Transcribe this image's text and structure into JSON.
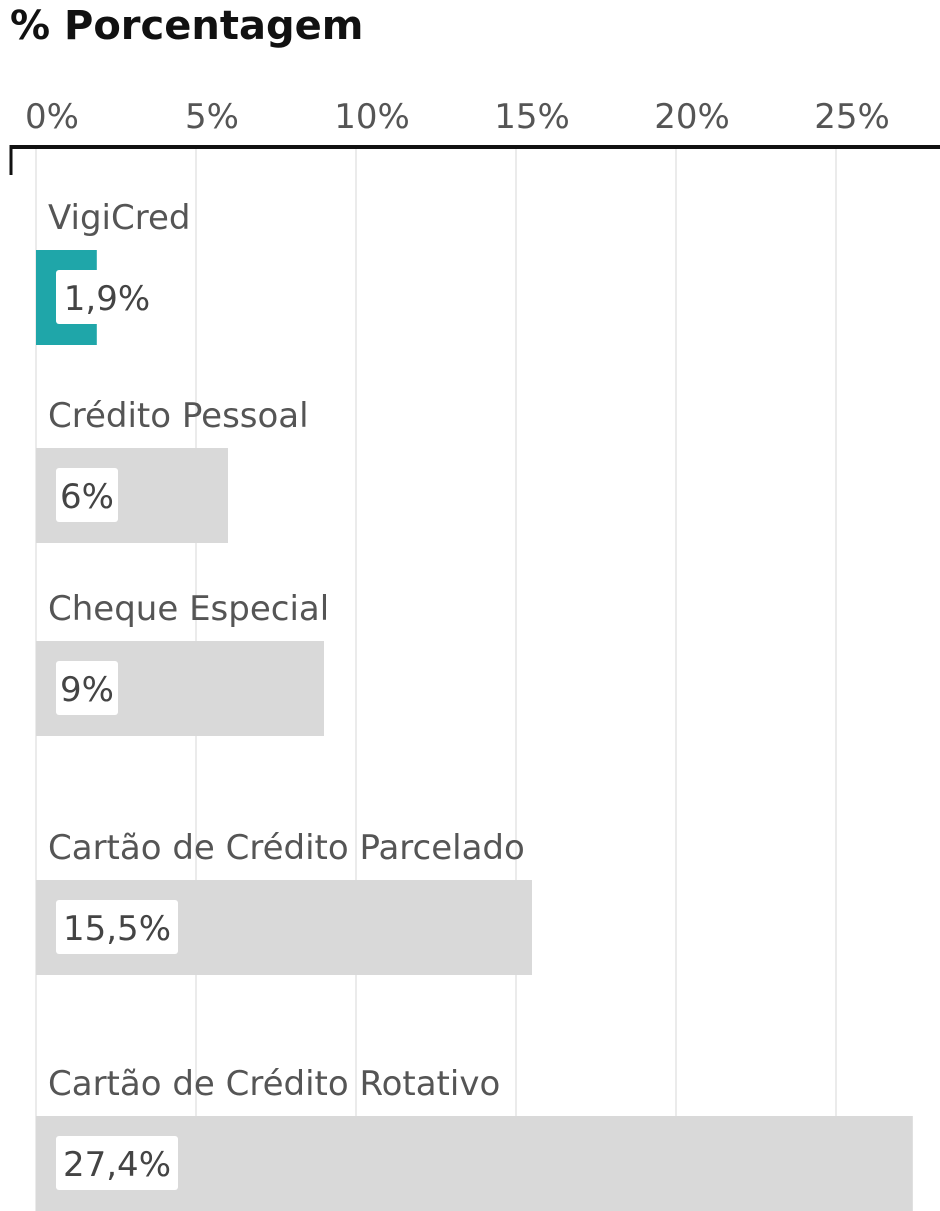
{
  "chart_data": {
    "type": "bar",
    "orientation": "horizontal",
    "title": "% Porcentagem",
    "xlabel": "",
    "ylabel": "",
    "xlim": [
      0,
      28
    ],
    "ticks": [
      {
        "value": 0,
        "label": "0%"
      },
      {
        "value": 5,
        "label": "5%"
      },
      {
        "value": 10,
        "label": "10%"
      },
      {
        "value": 15,
        "label": "15%"
      },
      {
        "value": 20,
        "label": "20%"
      },
      {
        "value": 25,
        "label": "25%"
      }
    ],
    "grid": true,
    "categories": [
      "VigiCred",
      "Crédito Pessoal",
      "Cheque Especial",
      "Cartão de Crédito Parcelado",
      "Cartão de Crédito Rotativo"
    ],
    "values": [
      1.9,
      6,
      9,
      15.5,
      27.4
    ],
    "value_labels": [
      "1,9%",
      "6%",
      "9%",
      "15,5%",
      "27,4%"
    ],
    "colors": {
      "highlight": "#1fa6a9",
      "bar": "#d9d9d9",
      "grid": "#ebebeb",
      "axis": "#111111"
    }
  }
}
